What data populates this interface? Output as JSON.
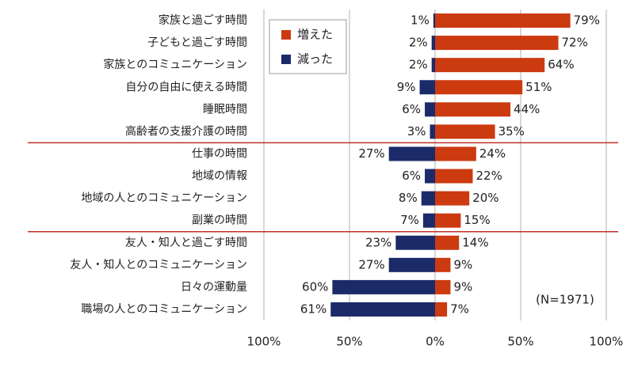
{
  "chart_data": {
    "type": "diverging-bar",
    "categories": [
      "家族と過ごす時間",
      "子どもと過ごす時間",
      "家族とのコミュニケーション",
      "自分の自由に使える時間",
      "睡眠時間",
      "高齢者の支援介護の時間",
      "仕事の時間",
      "地域の情報",
      "地域の人とのコミュニケーション",
      "副業の時間",
      "友人・知人と過ごす時間",
      "友人・知人とのコミュニケーション",
      "日々の運動量",
      "職場の人とのコミュニケーション"
    ],
    "series": [
      {
        "name": "増えた",
        "color": "#cc3a10",
        "values": [
          79,
          72,
          64,
          51,
          44,
          35,
          24,
          22,
          20,
          15,
          14,
          9,
          9,
          7
        ],
        "value_labels": [
          "79%",
          "72%",
          "64%",
          "51%",
          "44%",
          "35%",
          "24%",
          "22%",
          "20%",
          "15%",
          "14%",
          "9%",
          "9%",
          "7%"
        ]
      },
      {
        "name": "減った",
        "color": "#1b2a68",
        "values": [
          -1,
          -2,
          -2,
          -9,
          -6,
          -3,
          -27,
          -6,
          -8,
          -7,
          -23,
          -27,
          -60,
          -61
        ],
        "value_labels": [
          "1%",
          "2%",
          "2%",
          "9%",
          "6%",
          "3%",
          "27%",
          "6%",
          "8%",
          "7%",
          "23%",
          "27%",
          "60%",
          "61%"
        ]
      }
    ],
    "xlim": [
      -100,
      100
    ],
    "xticks": [
      {
        "value": -100,
        "label": "100%"
      },
      {
        "value": -50,
        "label": "50%"
      },
      {
        "value": 0,
        "label": "0%"
      },
      {
        "value": 50,
        "label": "50%"
      },
      {
        "value": 100,
        "label": "100%"
      }
    ],
    "grid": true,
    "annotation": "(N=1971)"
  }
}
